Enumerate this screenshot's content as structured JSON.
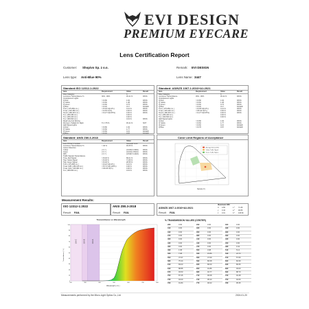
{
  "header": {
    "brand": "EVI DESIGN",
    "tagline": "PREMIUM EYECARE",
    "report_title": "Lens Certification Report"
  },
  "info": {
    "customer_label": "Customer:",
    "customer_value": "Shopivo Sp. z o.o.",
    "remark_label": "Remark:",
    "remark_value": "EVI DESIGN",
    "lens_type_label": "Lens type:",
    "lens_type_value": "Anti-Blue 90%",
    "lens_name_label": "Lens Name:",
    "lens_name_value": "3447"
  },
  "iso_section": {
    "title": "Standard:ISO 12312-1:2022",
    "cols": [
      "Item",
      "Requirement",
      "Value",
      "Result"
    ],
    "rows": [
      {
        "item": "Filter Category",
        "req": "",
        "val": "3",
        "res": ""
      },
      {
        "item": "Luminous Transmittance Tv",
        "req": "30% - 80%",
        "val": "45.41 %",
        "res": "PASS"
      },
      {
        "item": "Incandescent Lights",
        "req": "",
        "val": "",
        "res": ""
      },
      {
        "item": "Q Red",
        "req": ">=0.80",
        "val": "1.94",
        "res": "PASS"
      },
      {
        "item": "Q Yellow",
        "req": ">=0.60",
        "val": "1.48",
        "res": "PASS"
      },
      {
        "item": "Q Green",
        "req": ">=0.60",
        "val": "0.73",
        "res": "PASS"
      },
      {
        "item": "Q Blue",
        "req": ">=0.40",
        "val": "0.17",
        "res": "FAILED"
      },
      {
        "item": "Tmin   ( 475-650 nm )",
        "req": ">=5.00  %(0.2Tv)",
        "val": "0.21  %",
        "res": "PASS"
      },
      {
        "item": "Tmax  ( 315-380 nm )",
        "req": "<=0.45  %(Tv)",
        "val": "0.00  %",
        "res": "PASS"
      },
      {
        "item": "Tsuvb  ( 280-315 nm )",
        "req": "<=0.27  %(0.05Tv)",
        "val": "0.00  %",
        "res": "PASS"
      },
      {
        "item": "Tuv  ( 280-380 nm )",
        "req": "",
        "val": "0.00  %",
        "res": ""
      },
      {
        "item": "Tuv  ( 280-400 nm )",
        "req": "",
        "val": "0.00  %",
        "res": ""
      },
      {
        "item": "Tuv  ( 380-500 nm )",
        "req": "",
        "val": "0.19  %",
        "res": "PASS"
      },
      {
        "item": "Road Use And Driving",
        "req": "",
        "val": "",
        "res": ""
      },
      {
        "item": "Driving In Twilight Or Night",
        "req": "Tv>=75 %",
        "val": "45.41  %",
        "res": "NOT"
      },
      {
        "item": "LED Signal Lights",
        "req": "",
        "val": "",
        "res": ""
      },
      {
        "item": "Q Red",
        "req": ">=0.80",
        "val": "1.94",
        "res": "PASS"
      },
      {
        "item": "Q Yellow",
        "req": ">=0.60",
        "val": "1.77",
        "res": "PASS"
      },
      {
        "item": "Q Green",
        "req": ">=0.60",
        "val": "0.21",
        "res": "FAILED"
      },
      {
        "item": "Q Blue",
        "req": ">=0.40",
        "val": "0.67",
        "res": "FAILED"
      }
    ]
  },
  "as_section": {
    "title": "Standard:  AS/NZS 1067.1:2016+A1:2021",
    "cols": [
      "Item",
      "Requirement",
      "Value",
      "Result"
    ],
    "rows": [
      {
        "item": "Filter Category",
        "req": "",
        "val": "3",
        "res": ""
      },
      {
        "item": "Luminous Transmittance",
        "req": "45% - 80%",
        "val": "45.42  %",
        "res": "PASS"
      },
      {
        "item": "Incandescent Lights",
        "req": "",
        "val": "",
        "res": ""
      },
      {
        "item": "Q Red",
        "req": ">=0.80",
        "val": "1.94",
        "res": "PASS"
      },
      {
        "item": "Q Yellow",
        "req": ">=0.60",
        "val": "1.48",
        "res": "PASS"
      },
      {
        "item": "Q Green",
        "req": ">=0.60",
        "val": "0.73",
        "res": "PASS"
      },
      {
        "item": "Q Blue",
        "req": ">=0.40",
        "val": "0.17",
        "res": "FAILED"
      },
      {
        "item": "Tmin   ( 475-650 nm )",
        "req": ">=9.08  %(0.2Tv)",
        "val": "0.21  %",
        "res": "PASS"
      },
      {
        "item": "Tmax  ( 315-400 nm )",
        "req": "<=45.40  %(Tv)",
        "val": "0.00  %",
        "res": "PASS"
      },
      {
        "item": "Tsuvb  ( 280-315 nm )",
        "req": "<=2.27  %(0.05Tv)",
        "val": "0.00  %",
        "res": "PASS"
      },
      {
        "item": "Tuv  ( 280-400 nm )",
        "req": "",
        "val": "0.00  %",
        "res": ""
      },
      {
        "item": "Tuv  ( 400-500 nm )",
        "req": "",
        "val": "0.00  %",
        "res": ""
      },
      {
        "item": "LED Signal Lights",
        "req": "",
        "val": "",
        "res": ""
      },
      {
        "item": "Q Red",
        "req": ">=0.80",
        "val": "1.94",
        "res": "PASS"
      },
      {
        "item": "Q Yellow",
        "req": ">=0.60",
        "val": "1.77",
        "res": "PASS"
      },
      {
        "item": "Q Green",
        "req": ">=0.60",
        "val": "0.21",
        "res": "FAILED"
      },
      {
        "item": "Q Blue",
        "req": ">=0.78",
        "val": "0.67",
        "res": "FAILED"
      }
    ]
  },
  "ansi_section": {
    "title": "Standard:  ANSI Z80.3-2018",
    "cols": [
      "Item",
      "Requirement",
      "Value",
      "Result"
    ],
    "rows": [
      {
        "item": "Lens Primary Function",
        "req": "",
        "val": "Cosmetic Lens",
        "res": ""
      },
      {
        "item": "Luminous Transmittance Tv",
        "req": "> 40   %",
        "val": "46.05  %",
        "res": "PASS"
      },
      {
        "item": "Colour Distortion",
        "req": "",
        "val": "",
        "res": ""
      },
      {
        "item": "Yellow",
        "req": "( X,Y )",
        "val": "(0.4062,0.3930)",
        "res": "PASS"
      },
      {
        "item": "Green",
        "req": "( X,Y )",
        "val": "(0.4011,0.5013)",
        "res": "PASS"
      },
      {
        "item": "D65",
        "req": "( X,Y )",
        "val": "(0.5497,0.4443)",
        "res": "PASS"
      },
      {
        "item": "Traffic Signals Transmittance",
        "req": "",
        "val": "",
        "res": ""
      },
      {
        "item": "Trsig, Red Signal",
        "req": ">=8.00  %",
        "val": "89.01  %",
        "res": "PASS"
      },
      {
        "item": "Tsig, Yellow Signal",
        "req": ">=6.00  %",
        "val": "71.66  %",
        "res": "PASS"
      },
      {
        "item": "Tsig, Green Signal",
        "req": ">=6.00  %",
        "val": "28.55  %",
        "res": "PASS"
      },
      {
        "item": "Tmin   ( 475-650 nm )",
        "req": ">=9.22  %(0.2Tv)",
        "val": "0.21  %",
        "res": "PASS"
      },
      {
        "item": "Tmax UVB  ( 280-315 nm )",
        "req": "<=5.74  %(0.125Tv)",
        "val": "0.00  %",
        "res": "PASS"
      },
      {
        "item": "Tmax UVA  ( 315-380 nm )",
        "req": "<=46.05  %(Tv)",
        "val": "0.00  %",
        "res": "PASS"
      },
      {
        "item": "Tuv  ( 380-500 nm )",
        "req": "",
        "val": "0.19  %",
        "res": "PASS"
      }
    ]
  },
  "color_limit": {
    "title": "Color Limit Regions of Acceptance",
    "legend": [
      "Average Normal D65",
      "Yellow Traffic Signal",
      "Green Traffic Signal"
    ],
    "xlabel": "Sample (X )"
  },
  "measurement": {
    "title": "Measurement Results:",
    "iso_title": "ISO 12312-1:2022",
    "ansi_title": "ANSI Z80.3-2018",
    "as_title": "AS/NZS 1067.1:2016+A1:2021",
    "result_label": "Result",
    "iso_result": "FAIL",
    "ansi_result": "FAIL",
    "as_result": "FAIL",
    "illuminant_title": "Illuminant D65",
    "illuminant_rows": [
      {
        "k": "X",
        "v": "0.55",
        "k2": "L *",
        "v2": "71.36"
      },
      {
        "k": "y",
        "v": "0.44",
        "k2": "a *",
        "v2": "48.86"
      },
      {
        "k": "z",
        "v": "0.01",
        "k2": "b *",
        "v2": "108.80"
      }
    ]
  },
  "transmission_chart": {
    "title": "Transmittance vs Wavelength",
    "ylabel": "Transmittance ( % )",
    "xlabel": "Wavelength ( nm )",
    "band_labels": [
      "UV-C",
      "UV-B",
      "UV-A"
    ],
    "y_ticks": [
      "100",
      "90",
      "80",
      "70",
      "60",
      "50",
      "40",
      "30",
      "20",
      "10",
      "0"
    ],
    "x_ticks": [
      "200",
      "300",
      "400",
      "500",
      "600",
      "700",
      "800"
    ]
  },
  "chart_data": {
    "type": "area",
    "title": "Transmittance vs Wavelength",
    "xlabel": "Wavelength ( nm )",
    "ylabel": "Transmittance ( % )",
    "xlim": [
      200,
      800
    ],
    "ylim": [
      0,
      100
    ],
    "x": [
      280,
      390,
      400,
      420,
      440,
      460,
      480,
      500,
      510,
      520,
      530,
      540,
      550,
      560,
      570,
      580,
      590,
      600,
      620,
      640,
      660,
      680,
      700,
      720,
      740,
      760,
      780
    ],
    "values": [
      0,
      0,
      0,
      0,
      0.2,
      0.6,
      1.5,
      5,
      10,
      18,
      28,
      38,
      48,
      56,
      62,
      68,
      73,
      76,
      81,
      85,
      88,
      90,
      91,
      92,
      93,
      93.5,
      94
    ]
  },
  "transmission_table": {
    "title": "% TRANSMISSION VALUES (CENTER)",
    "columns": [
      [
        [
          "280",
          "0.00"
        ],
        [
          "310",
          "0.00"
        ],
        [
          "340",
          "0.00"
        ],
        [
          "370",
          "0.00"
        ],
        [
          "400",
          "0.00"
        ],
        [
          "430",
          "0.00"
        ],
        [
          "460",
          "0.00"
        ],
        [
          "490",
          "1.68"
        ],
        [
          "520",
          "7.98"
        ],
        [
          "550",
          "37.67"
        ],
        [
          "580",
          "75.44"
        ],
        [
          "610",
          "83.03"
        ],
        [
          "640",
          "88.85"
        ],
        [
          "670",
          "93.53"
        ],
        [
          "700",
          "87.45"
        ],
        [
          "730",
          "94.00"
        ],
        [
          "760",
          "91.84"
        ]
      ],
      [
        [
          "290",
          "0.00"
        ],
        [
          "320",
          "0.00"
        ],
        [
          "350",
          "0.00"
        ],
        [
          "380",
          "0.00"
        ],
        [
          "410",
          "0.00"
        ],
        [
          "440",
          "0.00"
        ],
        [
          "470",
          "0.00"
        ],
        [
          "500",
          "3.98"
        ],
        [
          "530",
          "15.86"
        ],
        [
          "560",
          "47.69"
        ],
        [
          "590",
          "80.08"
        ],
        [
          "620",
          "86.00"
        ],
        [
          "650",
          "91.86"
        ],
        [
          "680",
          "94.77"
        ],
        [
          "710",
          "96.08"
        ],
        [
          "740",
          "95.23"
        ],
        [
          "770",
          "90.02"
        ]
      ],
      [
        [
          "300",
          "0.00"
        ],
        [
          "330",
          "0.00"
        ],
        [
          "360",
          "0.00"
        ],
        [
          "390",
          "0.00"
        ],
        [
          "420",
          "0.00"
        ],
        [
          "450",
          "0.00"
        ],
        [
          "480",
          "0.42"
        ],
        [
          "510",
          "5.14"
        ],
        [
          "540",
          "24.73"
        ],
        [
          "570",
          "57.06"
        ],
        [
          "600",
          "82.69"
        ],
        [
          "630",
          "86.65"
        ],
        [
          "660",
          "93.00"
        ],
        [
          "690",
          "88.70"
        ],
        [
          "720",
          "94.48"
        ],
        [
          "750",
          "94.06"
        ],
        [
          "780",
          "95.35"
        ]
      ]
    ]
  },
  "footer": {
    "left": "Measurements performed by the Micro-Light Optics Co.,Ltd",
    "right": "2024-01-20"
  }
}
